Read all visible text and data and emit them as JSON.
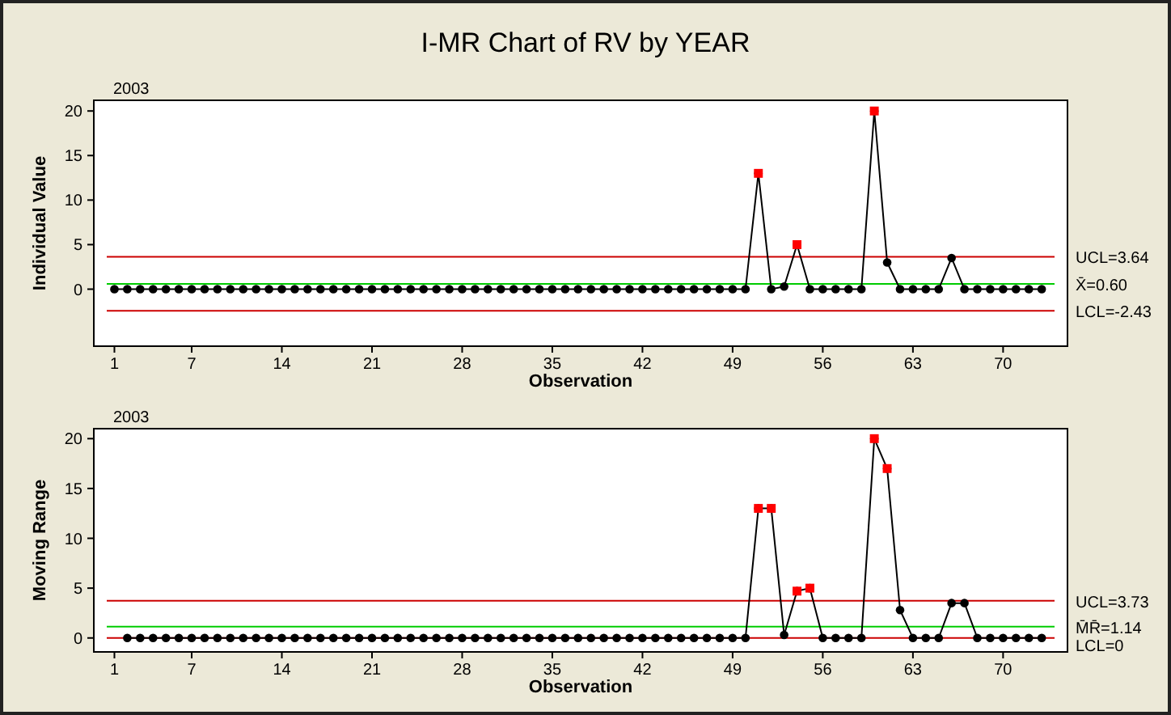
{
  "chart_data": [
    {
      "type": "line",
      "title": "I-MR Chart of RV by YEAR",
      "subtitle": "2003",
      "xlabel": "Observation",
      "ylabel": "Individual Value",
      "x": [
        1,
        2,
        3,
        4,
        5,
        6,
        7,
        8,
        9,
        10,
        11,
        12,
        13,
        14,
        15,
        16,
        17,
        18,
        19,
        20,
        21,
        22,
        23,
        24,
        25,
        26,
        27,
        28,
        29,
        30,
        31,
        32,
        33,
        34,
        35,
        36,
        37,
        38,
        39,
        40,
        41,
        42,
        43,
        44,
        45,
        46,
        47,
        48,
        49,
        50,
        51,
        52,
        53,
        54,
        55,
        56,
        57,
        58,
        59,
        60,
        61,
        62,
        63,
        64,
        65,
        66,
        67,
        68,
        69,
        70,
        71,
        72,
        73
      ],
      "series": [
        {
          "color": "#000000",
          "marker": "circle",
          "values": [
            0,
            0,
            0,
            0,
            0,
            0,
            0,
            0,
            0,
            0,
            0,
            0,
            0,
            0,
            0,
            0,
            0,
            0,
            0,
            0,
            0,
            0,
            0,
            0,
            0,
            0,
            0,
            0,
            0,
            0,
            0,
            0,
            0,
            0,
            0,
            0,
            0,
            0,
            0,
            0,
            0,
            0,
            0,
            0,
            0,
            0,
            0,
            0,
            0,
            0,
            13,
            0,
            0.3,
            5,
            0,
            0,
            0,
            0,
            0,
            20,
            3,
            0,
            0,
            0,
            0,
            3.5,
            0,
            0,
            0,
            0,
            0,
            0,
            0
          ]
        },
        {
          "type": "scatter",
          "color": "#ff0000",
          "marker": "square",
          "x": [
            51,
            54,
            60
          ],
          "values": [
            13,
            5,
            20
          ]
        }
      ],
      "xlim": [
        -0.6,
        75
      ],
      "xticks": [
        1,
        7,
        14,
        21,
        28,
        35,
        42,
        49,
        56,
        63,
        70
      ],
      "ylim": [
        -6.4,
        21.2
      ],
      "yticks": [
        0,
        5,
        10,
        15,
        20
      ],
      "ref_lines": [
        {
          "axis": "y",
          "value": 3.64,
          "label": "UCL=3.64",
          "color": "#cc0000"
        },
        {
          "axis": "y",
          "value": 0.6,
          "label": "X̄=0.60",
          "color": "#00cc00"
        },
        {
          "axis": "y",
          "value": -2.43,
          "label": "LCL=-2.43",
          "color": "#cc0000"
        }
      ],
      "grid": false
    },
    {
      "type": "line",
      "subtitle": "2003",
      "xlabel": "Observation",
      "ylabel": "Moving Range",
      "x": [
        2,
        3,
        4,
        5,
        6,
        7,
        8,
        9,
        10,
        11,
        12,
        13,
        14,
        15,
        16,
        17,
        18,
        19,
        20,
        21,
        22,
        23,
        24,
        25,
        26,
        27,
        28,
        29,
        30,
        31,
        32,
        33,
        34,
        35,
        36,
        37,
        38,
        39,
        40,
        41,
        42,
        43,
        44,
        45,
        46,
        47,
        48,
        49,
        50,
        51,
        52,
        53,
        54,
        55,
        56,
        57,
        58,
        59,
        60,
        61,
        62,
        63,
        64,
        65,
        66,
        67,
        68,
        69,
        70,
        71,
        72,
        73
      ],
      "series": [
        {
          "color": "#000000",
          "marker": "circle",
          "values": [
            0,
            0,
            0,
            0,
            0,
            0,
            0,
            0,
            0,
            0,
            0,
            0,
            0,
            0,
            0,
            0,
            0,
            0,
            0,
            0,
            0,
            0,
            0,
            0,
            0,
            0,
            0,
            0,
            0,
            0,
            0,
            0,
            0,
            0,
            0,
            0,
            0,
            0,
            0,
            0,
            0,
            0,
            0,
            0,
            0,
            0,
            0,
            0,
            0,
            13,
            13,
            0.3,
            4.7,
            5,
            0,
            0,
            0,
            0,
            20,
            17,
            2.8,
            0,
            0,
            0,
            3.5,
            3.5,
            0,
            0,
            0,
            0,
            0,
            0
          ]
        },
        {
          "type": "scatter",
          "color": "#ff0000",
          "marker": "square",
          "x": [
            51,
            52,
            54,
            55,
            60,
            61
          ],
          "values": [
            13,
            13,
            4.7,
            5,
            20,
            17
          ]
        }
      ],
      "xlim": [
        -0.6,
        75
      ],
      "xticks": [
        1,
        7,
        14,
        21,
        28,
        35,
        42,
        49,
        56,
        63,
        70
      ],
      "ylim": [
        -1.4,
        21
      ],
      "yticks": [
        0,
        5,
        10,
        15,
        20
      ],
      "ref_lines": [
        {
          "axis": "y",
          "value": 3.73,
          "label": "UCL=3.73",
          "color": "#cc0000"
        },
        {
          "axis": "y",
          "value": 1.14,
          "label": "M̄R̄=1.14",
          "color": "#00cc00"
        },
        {
          "axis": "y",
          "value": 0,
          "label": "LCL=0",
          "color": "#cc0000"
        }
      ],
      "grid": false
    }
  ]
}
